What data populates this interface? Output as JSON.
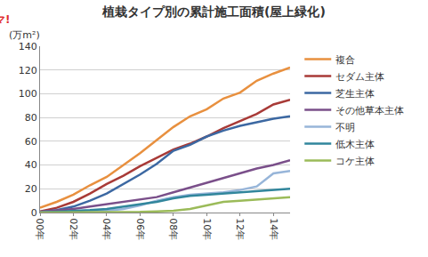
{
  "chart_data": {
    "type": "line",
    "title": "植栽タイプ別の累計施工面積(屋上緑化)",
    "y_label": "(万m²)",
    "annotations": [
      "マ!"
    ],
    "categories": [
      "00年",
      null,
      "02年",
      null,
      "04年",
      null,
      "06年",
      null,
      "08年",
      null,
      "10年",
      null,
      "12年",
      null,
      "14年",
      null
    ],
    "series": [
      {
        "name": "複合",
        "color": "#e8903f",
        "values": [
          4,
          9,
          15,
          23,
          30,
          40,
          50,
          61,
          72,
          81,
          87,
          96,
          101,
          111,
          117,
          122
        ]
      },
      {
        "name": "セダム主体",
        "color": "#a83a37",
        "values": [
          1,
          4,
          9,
          16,
          24,
          31,
          39,
          46,
          53,
          58,
          64,
          71,
          77,
          83,
          91,
          95
        ]
      },
      {
        "name": "芝生主体",
        "color": "#3c68a2",
        "values": [
          0.5,
          2,
          5,
          10,
          16,
          24,
          32,
          41,
          52,
          57,
          64,
          69,
          73,
          76,
          79,
          81
        ]
      },
      {
        "name": "その他草本主体",
        "color": "#7a4f8a",
        "values": [
          0.5,
          1.5,
          3,
          5,
          7,
          9,
          11,
          13,
          17,
          21,
          25,
          29,
          33,
          37,
          40,
          44
        ]
      },
      {
        "name": "不明",
        "color": "#97b5d9",
        "values": [
          0,
          0,
          0.5,
          1,
          1.5,
          3,
          6,
          10,
          13,
          15,
          16,
          17,
          19,
          22,
          33,
          35
        ]
      },
      {
        "name": "低木主体",
        "color": "#31869c",
        "values": [
          0,
          0.5,
          1,
          2,
          3,
          5,
          7,
          9,
          12,
          14,
          15,
          16,
          17,
          18,
          19,
          20
        ]
      },
      {
        "name": "コケ主体",
        "color": "#9bbb59",
        "values": [
          0,
          0,
          0,
          0,
          0,
          0,
          0.5,
          1,
          1.5,
          3,
          6,
          9,
          10,
          11,
          12,
          13
        ]
      }
    ],
    "ylim": [
      0,
      140
    ],
    "yticks": [
      0,
      20,
      40,
      60,
      80,
      100,
      120,
      140
    ],
    "grid": true,
    "legend": "right"
  }
}
